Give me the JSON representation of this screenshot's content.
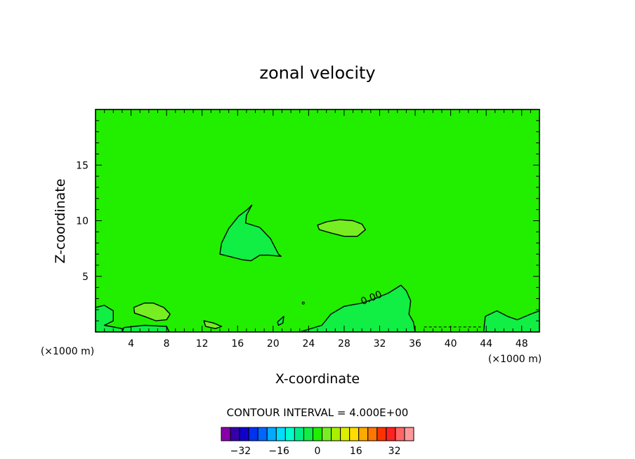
{
  "chart_data": {
    "type": "contour",
    "title": "zonal velocity",
    "xlabel": "X-coordinate",
    "ylabel": "Z-coordinate",
    "x_unit_note": "(×1000 m)",
    "y_unit_note": "(×1000 m)",
    "xlim": [
      0,
      50
    ],
    "ylim": [
      0,
      20
    ],
    "x_ticks": [
      "4",
      "8",
      "12",
      "16",
      "20",
      "24",
      "28",
      "32",
      "36",
      "40",
      "44",
      "48"
    ],
    "y_ticks": [
      "5",
      "10",
      "15"
    ],
    "background_field_color": "#22ee00",
    "contour_interval_text": "CONTOUR INTERVAL = 4.000E+00",
    "contour_label": "0.00",
    "contours": [
      {
        "name": "anvil-negative-region",
        "sign": "negative",
        "fill": "#11ee44",
        "points": [
          [
            14.0,
            7.0
          ],
          [
            14.2,
            8.0
          ],
          [
            15.0,
            9.3
          ],
          [
            16.1,
            10.4
          ],
          [
            17.1,
            11.0
          ],
          [
            17.6,
            11.4
          ],
          [
            17.0,
            10.5
          ],
          [
            16.9,
            9.8
          ],
          [
            18.5,
            9.4
          ],
          [
            19.7,
            8.4
          ],
          [
            20.6,
            7.0
          ],
          [
            20.9,
            6.8
          ],
          [
            19.5,
            6.9
          ],
          [
            18.5,
            6.9
          ],
          [
            17.5,
            6.4
          ],
          [
            16.5,
            6.5
          ],
          [
            15.0,
            6.8
          ]
        ]
      },
      {
        "name": "upper-right-positive-blob",
        "sign": "positive",
        "fill": "#77ee22",
        "points": [
          [
            25.0,
            9.6
          ],
          [
            26.0,
            9.9
          ],
          [
            27.5,
            10.1
          ],
          [
            29.0,
            10.0
          ],
          [
            30.0,
            9.7
          ],
          [
            30.4,
            9.2
          ],
          [
            29.5,
            8.6
          ],
          [
            28.0,
            8.6
          ],
          [
            26.5,
            8.9
          ],
          [
            25.2,
            9.2
          ]
        ]
      },
      {
        "name": "lower-left-positive-blob",
        "sign": "positive",
        "fill": "#77ee22",
        "points": [
          [
            4.3,
            2.2
          ],
          [
            5.5,
            2.6
          ],
          [
            6.5,
            2.6
          ],
          [
            7.7,
            2.2
          ],
          [
            8.4,
            1.6
          ],
          [
            8.0,
            1.1
          ],
          [
            6.8,
            1.0
          ],
          [
            5.5,
            1.4
          ],
          [
            4.4,
            1.7
          ]
        ]
      },
      {
        "name": "left-edge-negative",
        "sign": "negative",
        "fill": "#11ee44",
        "points": [
          [
            0.0,
            0.0
          ],
          [
            0.0,
            2.2
          ],
          [
            1.0,
            2.4
          ],
          [
            2.0,
            1.9
          ],
          [
            2.0,
            1.0
          ],
          [
            1.0,
            0.6
          ],
          [
            3.0,
            0.3
          ],
          [
            3.5,
            0.0
          ]
        ]
      },
      {
        "name": "lower-center-negative",
        "sign": "negative",
        "fill": "#11ee44",
        "points": [
          [
            26.5,
            1.6
          ],
          [
            28.0,
            2.3
          ],
          [
            30.0,
            2.6
          ],
          [
            31.5,
            3.0
          ],
          [
            33.0,
            3.5
          ],
          [
            34.4,
            4.2
          ],
          [
            35.0,
            3.7
          ],
          [
            35.5,
            2.8
          ],
          [
            35.3,
            1.6
          ],
          [
            35.8,
            0.9
          ],
          [
            36.0,
            0.0
          ],
          [
            23.0,
            0.0
          ],
          [
            25.5,
            0.6
          ]
        ]
      },
      {
        "name": "right-edge-negative",
        "sign": "negative",
        "fill": "#11ee44",
        "points": [
          [
            43.7,
            0.0
          ],
          [
            43.9,
            1.4
          ],
          [
            45.2,
            1.9
          ],
          [
            46.4,
            1.4
          ],
          [
            47.5,
            1.1
          ],
          [
            49.0,
            1.6
          ],
          [
            50.0,
            1.9
          ],
          [
            50.0,
            0.0
          ]
        ]
      },
      {
        "name": "left-lower-strip",
        "sign": "negative",
        "fill": "#11ee44",
        "points": [
          [
            3.0,
            0.0
          ],
          [
            3.2,
            0.4
          ],
          [
            5.5,
            0.6
          ],
          [
            8.0,
            0.5
          ],
          [
            8.3,
            0.0
          ]
        ]
      },
      {
        "name": "mid-lower-blob",
        "sign": "positive",
        "fill": "#77ee22",
        "points": [
          [
            12.2,
            1.0
          ],
          [
            13.3,
            0.8
          ],
          [
            14.2,
            0.5
          ],
          [
            13.5,
            0.3
          ],
          [
            12.4,
            0.5
          ]
        ]
      },
      {
        "name": "small-blob-20",
        "sign": "negative",
        "fill": "#11ee44",
        "points": [
          [
            20.5,
            0.9
          ],
          [
            21.2,
            1.4
          ],
          [
            21.1,
            0.8
          ],
          [
            20.6,
            0.6
          ]
        ]
      }
    ],
    "colorbar": {
      "tick_labels": [
        "−32",
        "−16",
        "0",
        "16",
        "32"
      ],
      "tick_values": [
        -32,
        -16,
        0,
        16,
        32
      ],
      "range": [
        -40,
        40
      ],
      "colors": [
        "#8800aa",
        "#3300aa",
        "#1100cc",
        "#0033ee",
        "#0066ff",
        "#00aaff",
        "#00ddff",
        "#00ffcc",
        "#00ee88",
        "#11ee44",
        "#22ee00",
        "#77ee22",
        "#aaee00",
        "#ddee00",
        "#ffdd00",
        "#ffaa00",
        "#ff7700",
        "#ff3300",
        "#ff2222",
        "#ff6666",
        "#ff9999"
      ]
    }
  }
}
